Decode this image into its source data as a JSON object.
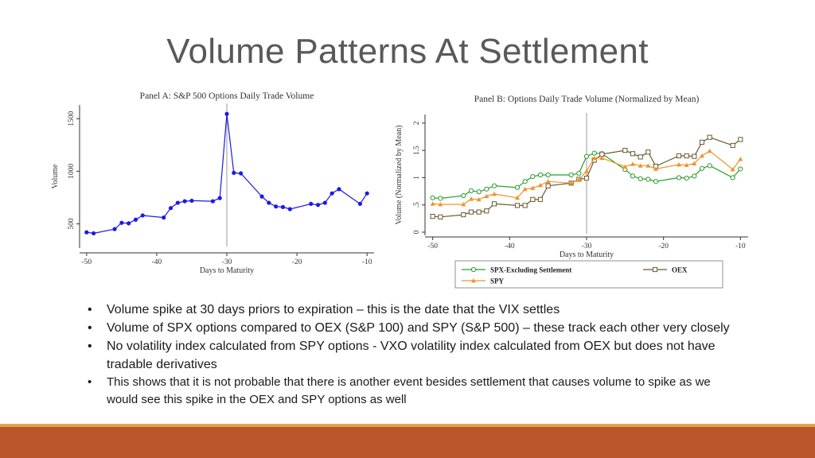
{
  "slide": {
    "title": "Volume Patterns At Settlement"
  },
  "bullets": [
    "Volume spike at 30 days priors to expiration – this is the date that the VIX settles",
    "Volume of SPX options compared to OEX (S&P 100) and SPY (S&P 500) – these track each other very closely",
    "No volatility index calculated from SPY options  - VXO volatility index calculated from OEX but does not have tradable derivatives",
    "This shows that it is not probable that there is another event besides settlement that causes volume to spike as we would see this spike in the OEX and SPY options as well"
  ],
  "bullet_symbol": "•",
  "colors": {
    "band": "#b8552b",
    "band_top": "#e6a24a",
    "title": "#595959",
    "spx": "#2a9c2a",
    "oex": "#6b5a30",
    "spy": "#f0922b",
    "panelA_line": "#1a1ae6"
  },
  "chart_data": [
    {
      "type": "line",
      "title": "Panel A: S&P 500 Options Daily Trade Volume",
      "xlabel": "Days to Maturity",
      "ylabel": "Volume",
      "xlim": [
        -51,
        -9
      ],
      "ylim": [
        300,
        1600
      ],
      "xticks": [
        -50,
        -40,
        -30,
        -20,
        -10
      ],
      "yticks": [
        500,
        1000,
        1500
      ],
      "reference_line_x": -30,
      "grid": false,
      "series": [
        {
          "name": "",
          "x": [
            -50,
            -49,
            -46,
            -45,
            -44,
            -43,
            -42,
            -39,
            -38,
            -37,
            -36,
            -35,
            -32,
            -31,
            -30,
            -29,
            -28,
            -25,
            -24,
            -23,
            -22,
            -21,
            -18,
            -17,
            -16,
            -15,
            -14,
            -11,
            -10
          ],
          "y": [
            420,
            410,
            450,
            510,
            505,
            540,
            580,
            560,
            650,
            700,
            715,
            720,
            715,
            745,
            1545,
            985,
            980,
            760,
            700,
            665,
            660,
            640,
            690,
            680,
            700,
            790,
            830,
            690,
            790
          ]
        }
      ]
    },
    {
      "type": "line",
      "title": "Panel B: Options Daily Trade Volume (Normalized by Mean)",
      "xlabel": "Days to Maturity",
      "ylabel": "Volume (Normalized by Mean)",
      "xlim": [
        -51,
        -9
      ],
      "ylim": [
        0,
        2.1
      ],
      "xticks": [
        -50,
        -40,
        -30,
        -20,
        -10
      ],
      "yticks": [
        0,
        0.5,
        1,
        1.5,
        2
      ],
      "ytick_labels": [
        "0",
        ".5",
        "1",
        "1.5",
        "2"
      ],
      "reference_line_x": -30,
      "legend_position": "bottom",
      "series": [
        {
          "name": "SPX-Excluding Settlement",
          "marker": "circle",
          "x": [
            -50,
            -49,
            -46,
            -45,
            -44,
            -43,
            -42,
            -39,
            -38,
            -37,
            -36,
            -35,
            -32,
            -31,
            -30,
            -29,
            -28,
            -25,
            -24,
            -23,
            -22,
            -21,
            -18,
            -17,
            -16,
            -15,
            -14,
            -11,
            -10
          ],
          "y": [
            0.63,
            0.62,
            0.67,
            0.76,
            0.74,
            0.79,
            0.85,
            0.82,
            0.93,
            1.02,
            1.05,
            1.05,
            1.05,
            1.08,
            1.39,
            1.45,
            1.44,
            1.15,
            1.03,
            0.98,
            0.97,
            0.93,
            1.0,
            0.99,
            1.03,
            1.17,
            1.22,
            1.0,
            1.16
          ]
        },
        {
          "name": "OEX",
          "marker": "square",
          "x": [
            -50,
            -49,
            -46,
            -45,
            -44,
            -43,
            -42,
            -39,
            -38,
            -37,
            -36,
            -35,
            -32,
            -31,
            -30,
            -29,
            -28,
            -25,
            -24,
            -23,
            -22,
            -21,
            -18,
            -17,
            -16,
            -15,
            -14,
            -11,
            -10
          ],
          "y": [
            0.29,
            0.28,
            0.32,
            0.37,
            0.37,
            0.39,
            0.52,
            0.49,
            0.49,
            0.6,
            0.6,
            0.85,
            0.9,
            0.97,
            0.99,
            1.32,
            1.43,
            1.5,
            1.44,
            1.38,
            1.47,
            1.21,
            1.4,
            1.4,
            1.39,
            1.65,
            1.74,
            1.59,
            1.7
          ]
        },
        {
          "name": "SPY",
          "marker": "triangle",
          "x": [
            -50,
            -49,
            -46,
            -45,
            -44,
            -43,
            -42,
            -39,
            -38,
            -37,
            -36,
            -35,
            -32,
            -31,
            -30,
            -29,
            -28,
            -25,
            -24,
            -23,
            -22,
            -21,
            -18,
            -17,
            -16,
            -15,
            -14,
            -11,
            -10
          ],
          "y": [
            0.52,
            0.51,
            0.51,
            0.61,
            0.6,
            0.66,
            0.7,
            0.63,
            0.79,
            0.81,
            0.86,
            0.93,
            0.9,
            0.96,
            1.12,
            1.36,
            1.36,
            1.2,
            1.25,
            1.22,
            1.22,
            1.16,
            1.24,
            1.23,
            1.26,
            1.4,
            1.49,
            1.15,
            1.34
          ]
        }
      ]
    }
  ]
}
